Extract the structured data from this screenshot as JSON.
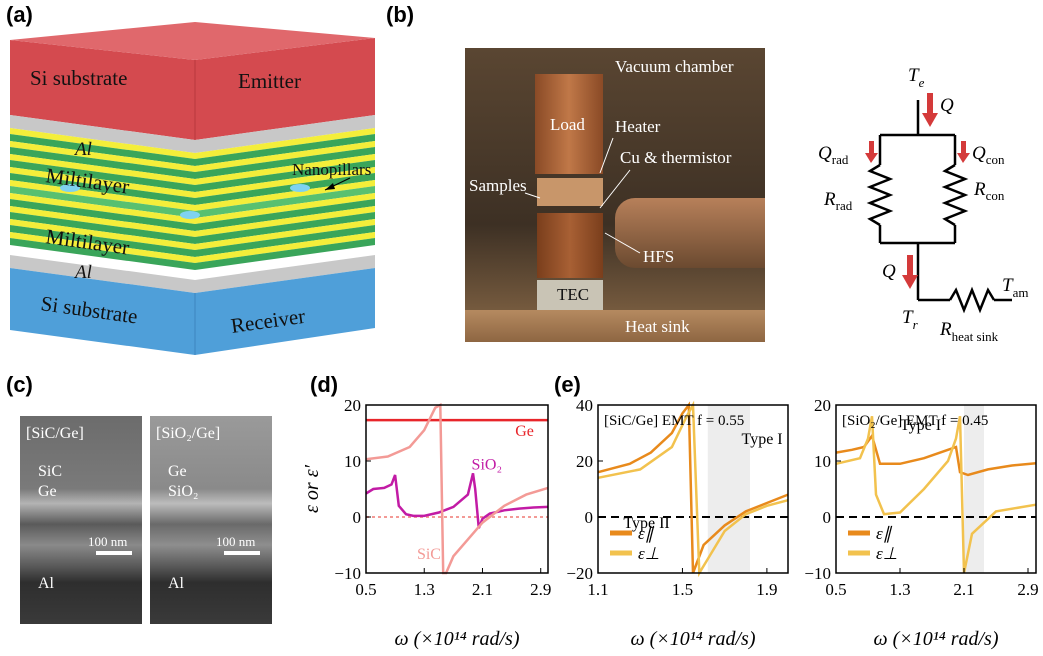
{
  "panels": {
    "a": "(a)",
    "b": "(b)",
    "c": "(c)",
    "d": "(d)",
    "e": "(e)"
  },
  "panel_a": {
    "top_left": "Si substrate",
    "top_right": "Emitter",
    "al_top": "Al",
    "multilayer_top": "Miltilayer",
    "nanopillars": "Nanopillars",
    "multilayer_bottom": "Miltilayer",
    "al_bottom": "Al",
    "bottom_left": "Si substrate",
    "bottom_right": "Receiver",
    "colors": {
      "emitter": "#d44a4f",
      "receiver": "#4f9fd9",
      "yellow": "#f4ee3a",
      "green": "#3aa55a"
    }
  },
  "panel_b": {
    "vacuum": "Vacuum chamber",
    "load": "Load",
    "heater": "Heater",
    "cu": "Cu & thermistor",
    "samples": "Samples",
    "hfs": "HFS",
    "tec": "TEC",
    "heat_sink": "Heat sink"
  },
  "circuit": {
    "te": "T",
    "te_sub": "e",
    "q_top": "Q",
    "qrad": "Q",
    "qrad_sub": "rad",
    "qcon": "Q",
    "qcon_sub": "con",
    "rrad": "R",
    "rrad_sub": "rad",
    "rcon": "R",
    "rcon_sub": "con",
    "q_bottom": "Q",
    "tr": "T",
    "tr_sub": "r",
    "tam": "T",
    "tam_sub": "am",
    "rhs": "R",
    "rhs_sub": "heat sink"
  },
  "panel_c": {
    "left_title": "[SiC/Ge]",
    "left_l1": "SiC",
    "left_l2": "Ge",
    "left_scale": "100 nm",
    "left_al": "Al",
    "right_title": "[SiO₂/Ge]",
    "right_l1": "Ge",
    "right_l2": "SiO₂",
    "right_scale": "100 nm",
    "right_al": "Al"
  },
  "chart_data": [
    {
      "type": "line",
      "panel": "d",
      "xlabel": "ω (×10¹⁴ rad/s)",
      "ylabel": "ε or ε′",
      "xlim": [
        0.5,
        3.0
      ],
      "ylim": [
        -10,
        20
      ],
      "xticks": [
        "0.5",
        "1.3",
        "2.1",
        "2.9"
      ],
      "yticks": [
        "20",
        "10",
        "0",
        "−10"
      ],
      "annotations": {
        "ge": "Ge",
        "sio2": "SiO₂",
        "sic": "SiC"
      },
      "colors": {
        "ge": "#e8252a",
        "sio2": "#c21ba5",
        "sic": "#f39a96"
      },
      "series": [
        {
          "name": "Ge",
          "x": [
            0.5,
            3.0
          ],
          "y": [
            17.3,
            17.3
          ]
        },
        {
          "name": "SiO₂",
          "x": [
            0.5,
            0.6,
            0.75,
            0.85,
            0.9,
            0.95,
            1.05,
            1.15,
            1.3,
            1.5,
            1.7,
            1.9,
            1.97,
            2.0,
            2.05,
            2.1,
            2.2,
            2.4,
            2.6,
            2.8,
            3.0
          ],
          "y": [
            4.2,
            5.0,
            5.2,
            5.8,
            7.5,
            2.0,
            0.5,
            0.2,
            0.2,
            0.8,
            1.8,
            4.0,
            7.8,
            5.0,
            -2.0,
            -0.3,
            0.6,
            1.2,
            1.5,
            1.7,
            1.8
          ]
        },
        {
          "name": "SiC",
          "x": [
            0.5,
            0.8,
            1.1,
            1.3,
            1.45,
            1.52,
            1.56,
            1.6,
            1.7,
            1.9,
            2.1,
            2.4,
            2.7,
            3.0
          ],
          "y": [
            10.3,
            10.8,
            12.5,
            15.5,
            19.5,
            20,
            -10,
            -10,
            -7,
            -4,
            -1,
            2,
            4,
            5.2
          ]
        }
      ]
    },
    {
      "type": "line",
      "panel": "e-left",
      "title": "[SiC/Ge] EMT  f = 0.55",
      "xlim": [
        1.1,
        2.0
      ],
      "ylim": [
        -20,
        40
      ],
      "xticks": [
        "1.1",
        "1.5",
        "1.9"
      ],
      "yticks": [
        "40",
        "20",
        "0",
        "−20"
      ],
      "annotations": {
        "type2": "Type II",
        "type1": "Type I"
      },
      "legend": [
        "ε∥",
        "ε⊥"
      ],
      "colors": {
        "par": "#e88a1c",
        "perp": "#f2c24e"
      },
      "series": [
        {
          "name": "ε∥",
          "x": [
            1.1,
            1.25,
            1.35,
            1.45,
            1.5,
            1.53,
            1.55,
            1.6,
            1.7,
            1.8,
            1.9,
            2.0
          ],
          "y": [
            16,
            19,
            23,
            30,
            37,
            40,
            -20,
            -10,
            -3,
            2,
            5,
            8
          ]
        },
        {
          "name": "ε⊥",
          "x": [
            1.1,
            1.3,
            1.45,
            1.52,
            1.55,
            1.58,
            1.62,
            1.7,
            1.8,
            1.9,
            2.0
          ],
          "y": [
            14,
            17,
            25,
            36,
            40,
            -20,
            -15,
            -5,
            1,
            4,
            6
          ]
        }
      ]
    },
    {
      "type": "line",
      "panel": "e-right",
      "title": "[SiO₂/Ge] EMT  f = 0.45",
      "xlim": [
        0.5,
        3.0
      ],
      "ylim": [
        -10,
        20
      ],
      "xticks": [
        "0.5",
        "1.3",
        "2.1",
        "2.9"
      ],
      "yticks": [
        "20",
        "10",
        "0",
        "−10"
      ],
      "annotations": {
        "type1": "Type I"
      },
      "legend": [
        "ε∥",
        "ε⊥"
      ],
      "colors": {
        "par": "#e88a1c",
        "perp": "#f2c24e"
      },
      "series": [
        {
          "name": "ε∥",
          "x": [
            0.5,
            0.7,
            0.85,
            0.95,
            1.05,
            1.3,
            1.6,
            1.9,
            2.0,
            2.05,
            2.15,
            2.4,
            2.7,
            3.0
          ],
          "y": [
            11.5,
            12,
            12.5,
            14.5,
            9.5,
            9.5,
            10.5,
            12,
            12.5,
            8,
            7.5,
            8.5,
            9.2,
            9.6
          ]
        },
        {
          "name": "ε⊥",
          "x": [
            0.5,
            0.8,
            0.9,
            0.95,
            1.0,
            1.1,
            1.3,
            1.6,
            1.9,
            2.0,
            2.05,
            2.1,
            2.2,
            2.5,
            3.0
          ],
          "y": [
            9.5,
            10.5,
            14,
            18,
            4,
            0.5,
            0.8,
            5,
            10,
            14,
            18,
            -10,
            -3,
            1,
            2.2
          ]
        }
      ]
    }
  ],
  "xlabel_common": "ω (×10¹⁴ rad/s)"
}
